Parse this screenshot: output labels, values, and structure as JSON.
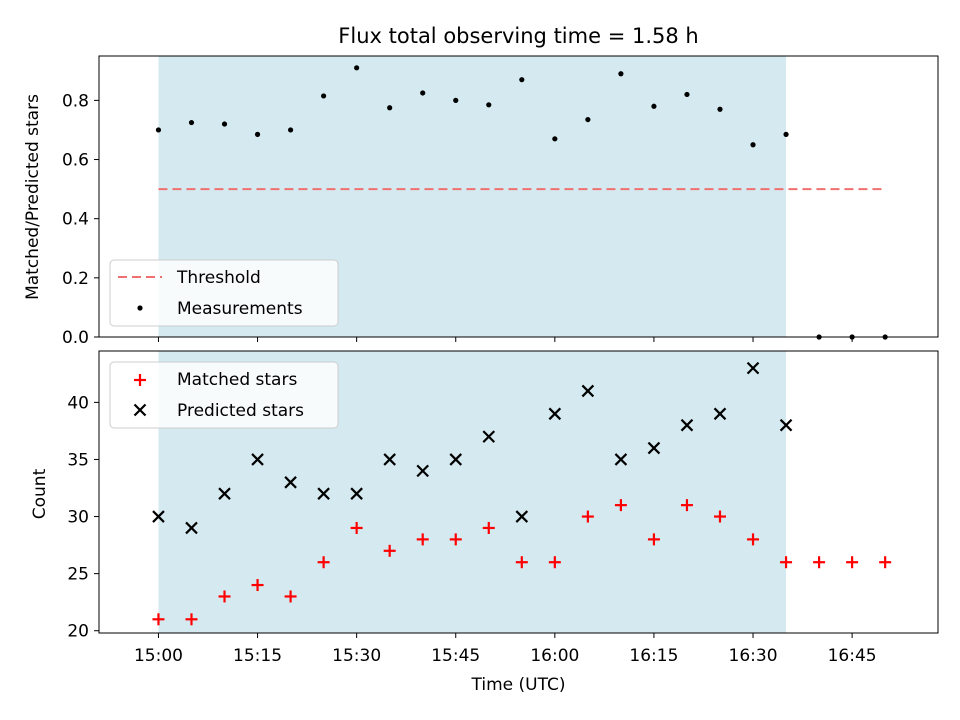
{
  "chart_data": [
    {
      "type": "scatter",
      "title": "Flux total observing time = 1.58 h",
      "ylabel": "Matched/Predicted stars",
      "xlim": [
        "14:51",
        "16:58"
      ],
      "ylim": [
        0,
        0.95
      ],
      "yticks": [
        "0.0",
        "0.2",
        "0.4",
        "0.6",
        "0.8"
      ],
      "shaded_span": [
        "15:00",
        "16:35"
      ],
      "shade_color": "#d4eaf0",
      "legend": {
        "placement": "lower-left",
        "entries": [
          "Threshold",
          "Measurements"
        ]
      },
      "threshold": {
        "name": "Threshold",
        "value": 0.5,
        "x_range": [
          "15:00",
          "16:50"
        ],
        "color": "#f07070"
      },
      "series": [
        {
          "name": "Measurements",
          "color": "#000000",
          "x": [
            "15:00",
            "15:05",
            "15:10",
            "15:15",
            "15:20",
            "15:25",
            "15:30",
            "15:35",
            "15:40",
            "15:45",
            "15:50",
            "15:55",
            "16:00",
            "16:05",
            "16:10",
            "16:15",
            "16:20",
            "16:25",
            "16:30",
            "16:35",
            "16:40",
            "16:45",
            "16:50"
          ],
          "y": [
            0.7,
            0.725,
            0.72,
            0.685,
            0.7,
            0.815,
            0.91,
            0.775,
            0.825,
            0.8,
            0.785,
            0.87,
            0.67,
            0.735,
            0.89,
            0.78,
            0.82,
            0.77,
            0.65,
            0.685,
            0.0,
            0.0,
            0.0
          ]
        }
      ]
    },
    {
      "type": "scatter",
      "xlabel": "Time (UTC)",
      "ylabel": "Count",
      "xlim": [
        "14:51",
        "16:58"
      ],
      "ylim": [
        19.8,
        44.5
      ],
      "xticks": [
        "15:00",
        "15:15",
        "15:30",
        "15:45",
        "16:00",
        "16:15",
        "16:30",
        "16:45"
      ],
      "yticks": [
        "20",
        "25",
        "30",
        "35",
        "40"
      ],
      "shaded_span": [
        "15:00",
        "16:35"
      ],
      "shade_color": "#d4eaf0",
      "legend": {
        "placement": "upper-left",
        "entries": [
          "Matched stars",
          "Predicted stars"
        ]
      },
      "series": [
        {
          "name": "Matched stars",
          "marker": "+",
          "color": "#ff0000",
          "x": [
            "15:00",
            "15:05",
            "15:10",
            "15:15",
            "15:20",
            "15:25",
            "15:30",
            "15:35",
            "15:40",
            "15:45",
            "15:50",
            "15:55",
            "16:00",
            "16:05",
            "16:10",
            "16:15",
            "16:20",
            "16:25",
            "16:30",
            "16:35",
            "16:40",
            "16:45",
            "16:50"
          ],
          "y": [
            21,
            21,
            23,
            24,
            23,
            26,
            29,
            27,
            28,
            28,
            29,
            26,
            26,
            30,
            31,
            28,
            31,
            30,
            28,
            26,
            26,
            26,
            26
          ]
        },
        {
          "name": "Predicted stars",
          "marker": "x",
          "color": "#000000",
          "x": [
            "15:00",
            "15:05",
            "15:10",
            "15:15",
            "15:20",
            "15:25",
            "15:30",
            "15:35",
            "15:40",
            "15:45",
            "15:50",
            "15:55",
            "16:00",
            "16:05",
            "16:10",
            "16:15",
            "16:20",
            "16:25",
            "16:30",
            "16:35"
          ],
          "y": [
            30,
            29,
            32,
            35,
            33,
            32,
            32,
            35,
            34,
            35,
            37,
            30,
            39,
            41,
            35,
            36,
            38,
            39,
            43,
            38
          ]
        }
      ]
    }
  ]
}
